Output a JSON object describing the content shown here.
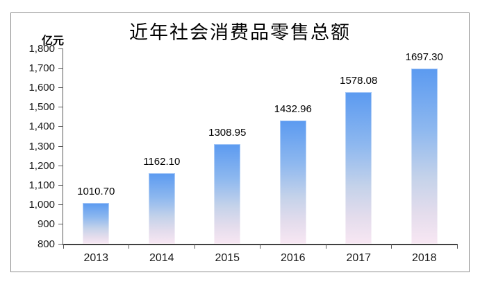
{
  "chart_data": {
    "type": "bar",
    "title": "近年社会消费品零售总额",
    "ylabel": "亿元",
    "xlabel": "",
    "categories": [
      "2013",
      "2014",
      "2015",
      "2016",
      "2017",
      "2018"
    ],
    "values": [
      1010.7,
      1162.1,
      1308.95,
      1432.96,
      1578.08,
      1697.3
    ],
    "value_labels": [
      "1010.70",
      "1162.10",
      "1308.95",
      "1432.96",
      "1578.08",
      "1697.30"
    ],
    "ylim": [
      800,
      1800
    ],
    "ytick_step": 100,
    "ytick_labels": [
      "800",
      "900",
      "1,000",
      "1,100",
      "1,200",
      "1,300",
      "1,400",
      "1,500",
      "1,600",
      "1,700",
      "1,800"
    ],
    "grid": false,
    "legend_position": "none",
    "bar_gradient_stops": [
      [
        "#5B9AF0",
        0
      ],
      [
        "#8EB8EF",
        35
      ],
      [
        "#C4D2EA",
        62
      ],
      [
        "#E3DCEC",
        82
      ],
      [
        "#F8E7F3",
        100
      ]
    ]
  },
  "colors": {
    "axis": "#595959",
    "x_axis": "#404040",
    "text": "#1a1a1a",
    "frame_border": "#8c8c8c",
    "background": "#ffffff"
  }
}
